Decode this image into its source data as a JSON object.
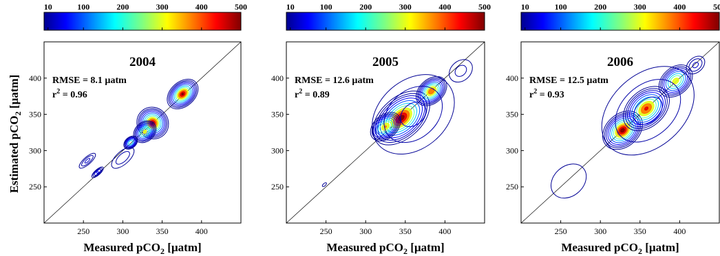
{
  "figure": {
    "ylabel_main": "Estimated pCO",
    "ylabel_sub": "2",
    "ylabel_unit": " [µatm]",
    "xlabel_main": "Measured pCO",
    "xlabel_sub": "2",
    "xlabel_unit": " [µatm]",
    "colorbar": {
      "ticks": [
        10,
        100,
        200,
        300,
        400,
        500
      ],
      "min": 0,
      "max": 500,
      "colormap": "jet"
    }
  },
  "chart_data": [
    {
      "type": "heatmap",
      "title": "2004",
      "rmse_text": "RMSE = 8.1 µatm",
      "r2_label": "r",
      "r2_sup": "2",
      "r2_value": " = 0.96",
      "xlim": [
        200,
        450
      ],
      "ylim": [
        200,
        450
      ],
      "xticks": [
        250,
        300,
        350,
        400
      ],
      "yticks": [
        250,
        300,
        350,
        400
      ],
      "reference_line": "1:1",
      "density_clusters": [
        {
          "x": 376,
          "y": 378,
          "sx": 8,
          "sy": 6,
          "peak": 500
        },
        {
          "x": 338,
          "y": 338,
          "sx": 7,
          "sy": 8,
          "peak": 500
        },
        {
          "x": 328,
          "y": 326,
          "sx": 6,
          "sy": 5,
          "peak": 330
        },
        {
          "x": 310,
          "y": 311,
          "sx": 4,
          "sy": 3,
          "peak": 220
        },
        {
          "x": 268,
          "y": 270,
          "sx": 5,
          "sy": 2,
          "peak": 60
        },
        {
          "x": 255,
          "y": 286,
          "sx": 8,
          "sy": 3,
          "peak": 40
        },
        {
          "x": 300,
          "y": 290,
          "sx": 12,
          "sy": 6,
          "peak": 30
        }
      ]
    },
    {
      "type": "heatmap",
      "title": "2005",
      "rmse_text": "RMSE = 12.6 µatm",
      "r2_label": "r",
      "r2_sup": "2",
      "r2_value": " = 0.89",
      "xlim": [
        200,
        450
      ],
      "ylim": [
        200,
        450
      ],
      "xticks": [
        250,
        300,
        350,
        400
      ],
      "yticks": [
        250,
        300,
        350,
        400
      ],
      "reference_line": "1:1",
      "density_clusters": [
        {
          "x": 345,
          "y": 345,
          "sx": 15,
          "sy": 10,
          "peak": 520
        },
        {
          "x": 383,
          "y": 382,
          "sx": 8,
          "sy": 6,
          "peak": 440
        },
        {
          "x": 325,
          "y": 333,
          "sx": 8,
          "sy": 6,
          "peak": 380
        },
        {
          "x": 360,
          "y": 350,
          "sx": 35,
          "sy": 28,
          "peak": 40
        },
        {
          "x": 420,
          "y": 410,
          "sx": 12,
          "sy": 10,
          "peak": 25
        },
        {
          "x": 248,
          "y": 253,
          "sx": 4,
          "sy": 2,
          "peak": 14
        }
      ]
    },
    {
      "type": "heatmap",
      "title": "2006",
      "rmse_text": "RMSE = 12.5 µatm",
      "r2_label": "r",
      "r2_sup": "2",
      "r2_value": " = 0.93",
      "xlim": [
        200,
        450
      ],
      "ylim": [
        200,
        450
      ],
      "xticks": [
        250,
        300,
        350,
        400
      ],
      "yticks": [
        250,
        300,
        350,
        400
      ],
      "reference_line": "1:1",
      "density_clusters": [
        {
          "x": 328,
          "y": 328,
          "sx": 10,
          "sy": 8,
          "peak": 520
        },
        {
          "x": 358,
          "y": 358,
          "sx": 12,
          "sy": 9,
          "peak": 460
        },
        {
          "x": 395,
          "y": 396,
          "sx": 9,
          "sy": 7,
          "peak": 340
        },
        {
          "x": 360,
          "y": 355,
          "sx": 40,
          "sy": 30,
          "peak": 40
        },
        {
          "x": 420,
          "y": 418,
          "sx": 8,
          "sy": 6,
          "peak": 40
        },
        {
          "x": 260,
          "y": 258,
          "sx": 30,
          "sy": 25,
          "peak": 14
        }
      ]
    }
  ]
}
